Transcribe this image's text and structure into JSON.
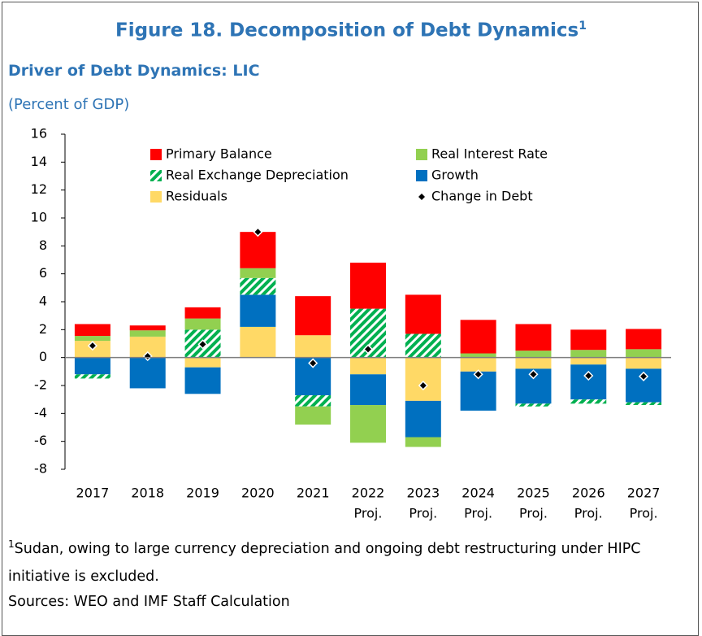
{
  "chart_data": {
    "type": "bar",
    "stacked": true,
    "title": "Figure 18. Decomposition of Debt Dynamics",
    "title_note_mark": "1",
    "subtitle": "Driver of Debt Dynamics: LIC",
    "unit": "(Percent of GDP)",
    "categories": [
      [
        "2017"
      ],
      [
        "2018"
      ],
      [
        "2019"
      ],
      [
        "2020"
      ],
      [
        "2021"
      ],
      [
        "2022",
        "Proj."
      ],
      [
        "2023",
        "Proj."
      ],
      [
        "2024",
        "Proj."
      ],
      [
        "2025",
        "Proj."
      ],
      [
        "2026",
        "Proj."
      ],
      [
        "2027",
        "Proj."
      ]
    ],
    "series": [
      {
        "name": "Primary Balance",
        "color": "#ff0000",
        "values": [
          0.85,
          0.35,
          0.8,
          2.6,
          2.8,
          3.3,
          2.8,
          2.4,
          1.9,
          1.45,
          1.45
        ]
      },
      {
        "name": "Real Interest Rate",
        "color": "#92d050",
        "values": [
          0.35,
          0.45,
          0.8,
          0.7,
          -1.3,
          -2.7,
          -0.7,
          0.3,
          0.5,
          0.55,
          0.6
        ]
      },
      {
        "name": "Real Exchange Depreciation",
        "color": "#00b050",
        "hatched": true,
        "values": [
          -0.3,
          0,
          2.0,
          1.2,
          -0.8,
          3.5,
          1.7,
          0,
          -0.2,
          -0.3,
          -0.2
        ]
      },
      {
        "name": "Growth",
        "color": "#0070c0",
        "values": [
          -1.2,
          -2.2,
          -1.9,
          2.3,
          -2.7,
          -2.2,
          -2.6,
          -2.8,
          -2.5,
          -2.5,
          -2.4
        ]
      },
      {
        "name": "Residuals",
        "color": "#ffd966",
        "values": [
          1.2,
          1.5,
          -0.7,
          2.2,
          1.6,
          -1.2,
          -3.1,
          -1.0,
          -0.8,
          -0.5,
          -0.8
        ]
      },
      {
        "name": "Change in Debt",
        "type": "marker",
        "color": "#000000",
        "values": [
          0.85,
          0.1,
          0.95,
          9.0,
          -0.4,
          0.6,
          -2.0,
          -1.2,
          -1.2,
          -1.3,
          -1.35
        ]
      }
    ],
    "ylim": [
      -8,
      16
    ],
    "yticks": [
      -8,
      -6,
      -4,
      -2,
      0,
      2,
      4,
      6,
      8,
      10,
      12,
      14,
      16
    ],
    "footnote_mark": "1",
    "footnote": "Sudan, owing to large currency depreciation and ongoing debt restructuring under HIPC initiative is excluded.",
    "source": "Sources: WEO and IMF Staff Calculation"
  }
}
